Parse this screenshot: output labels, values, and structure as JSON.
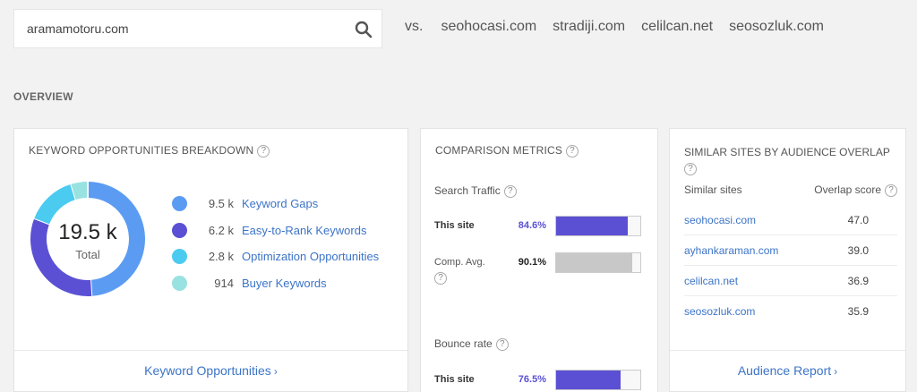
{
  "search": {
    "value": "aramamotoru.com"
  },
  "compare": {
    "vs_label": "vs.",
    "sites": [
      "seohocasi.com",
      "stradiji.com",
      "celilcan.net",
      "seosozluk.com"
    ]
  },
  "overview": {
    "title": "OVERVIEW"
  },
  "keyword_card": {
    "title": "KEYWORD OPPORTUNITIES BREAKDOWN",
    "help": "?",
    "total_value": "19.5 k",
    "total_label": "Total",
    "items": [
      {
        "count": "9.5 k",
        "label": "Keyword Gaps",
        "color": "#5b9cf2",
        "value": 9500
      },
      {
        "count": "6.2 k",
        "label": "Easy-to-Rank Keywords",
        "color": "#5b50d4",
        "value": 6200
      },
      {
        "count": "2.8 k",
        "label": "Optimization Opportunities",
        "color": "#4ccbf0",
        "value": 2800
      },
      {
        "count": "914",
        "label": "Buyer Keywords",
        "color": "#98e2e2",
        "value": 914
      }
    ],
    "footer": "Keyword Opportunities",
    "footer_arrow": "›"
  },
  "comparison_card": {
    "title": "COMPARISON METRICS",
    "help": "?",
    "metrics": [
      {
        "name": "Search Traffic",
        "rows": [
          {
            "label": "This site",
            "pct": "84.6%",
            "value": 84.6,
            "color": "#5b50d4",
            "pct_color": "#5b50d4"
          },
          {
            "label": "Comp. Avg.",
            "pct": "90.1%",
            "value": 90.1,
            "color": "#c8c8c8",
            "pct_color": "#222"
          }
        ]
      },
      {
        "name": "Bounce rate",
        "rows": [
          {
            "label": "This site",
            "pct": "76.5%",
            "value": 76.5,
            "color": "#5b50d4",
            "pct_color": "#5b50d4"
          }
        ]
      }
    ]
  },
  "similar_card": {
    "title": "SIMILAR SITES BY AUDIENCE OVERLAP",
    "help": "?",
    "col_sites": "Similar sites",
    "col_score": "Overlap score",
    "rows": [
      {
        "site": "seohocasi.com",
        "score": "47.0"
      },
      {
        "site": "ayhankaraman.com",
        "score": "39.0"
      },
      {
        "site": "celilcan.net",
        "score": "36.9"
      },
      {
        "site": "seosozluk.com",
        "score": "35.9"
      }
    ],
    "footer": "Audience Report",
    "footer_arrow": "›"
  }
}
